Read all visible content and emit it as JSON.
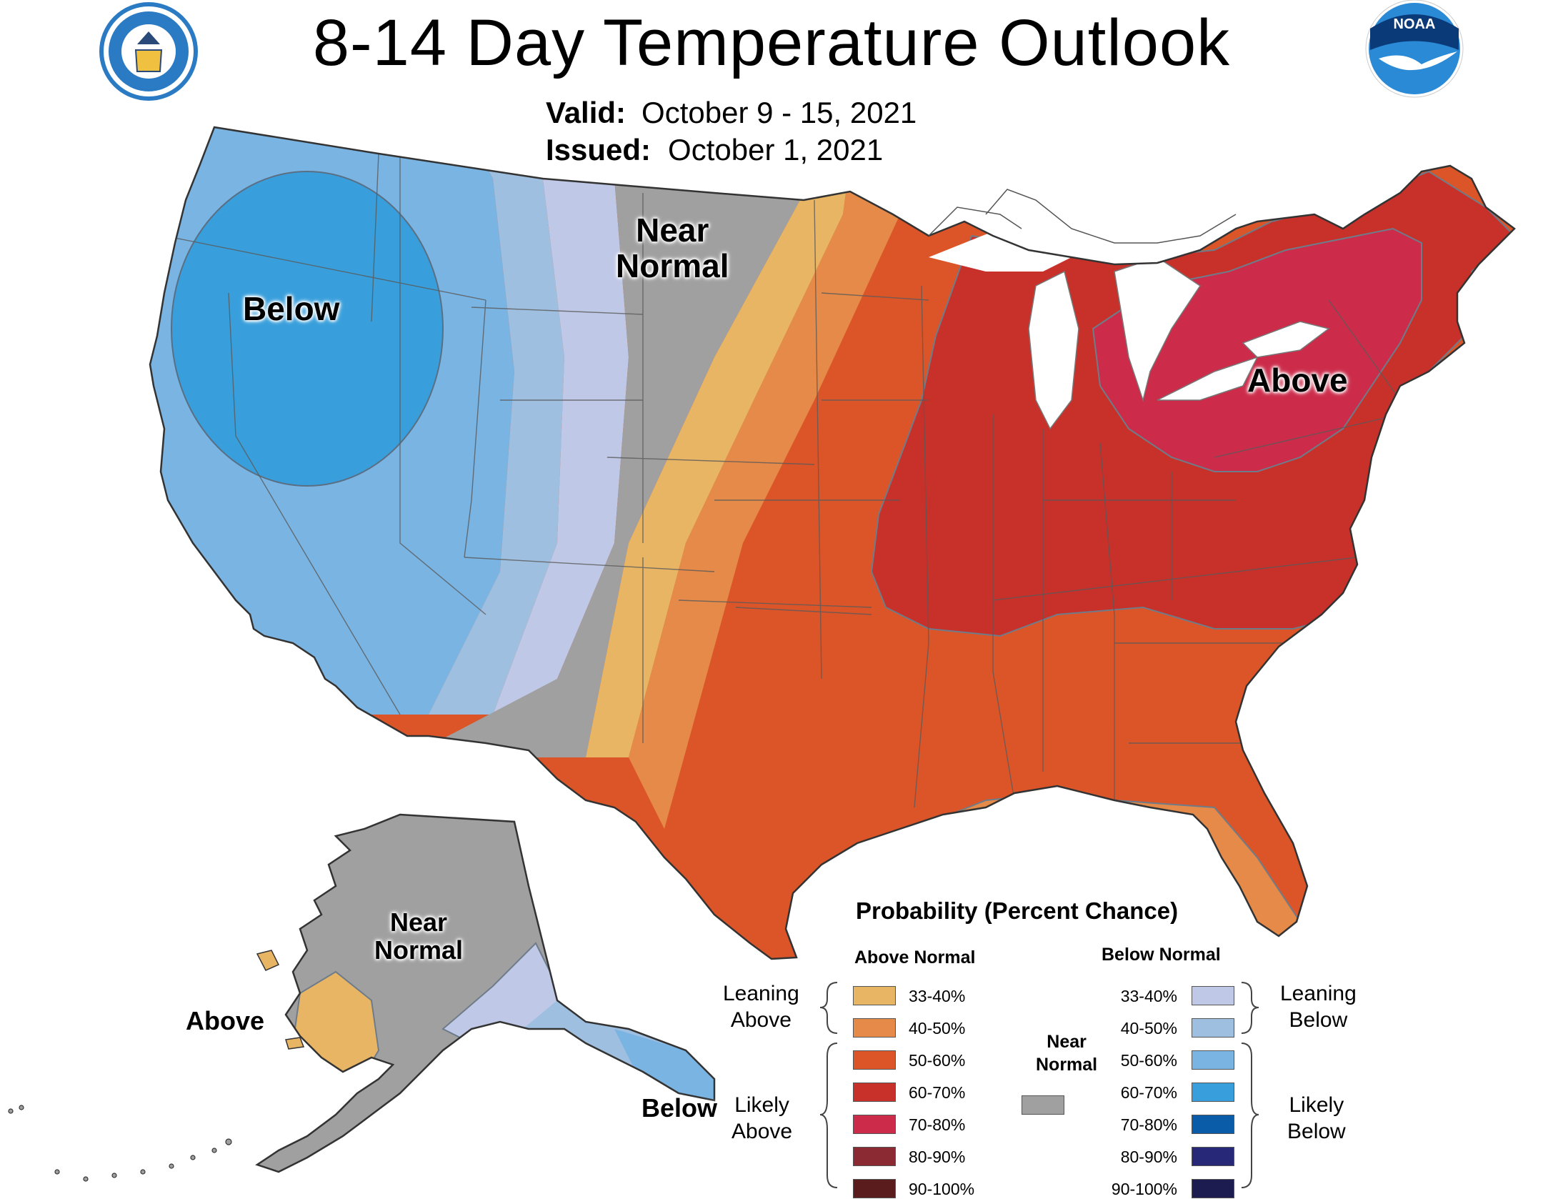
{
  "title": "8-14 Day Temperature Outlook",
  "valid_label": "Valid:",
  "valid_value": "October 9 - 15, 2021",
  "issued_label": "Issued:",
  "issued_value": "October 1, 2021",
  "logos": {
    "left": "department-of-commerce-seal",
    "right": "noaa-logo",
    "noaa_text": "NOAA"
  },
  "map_labels": {
    "below": "Below",
    "near_normal_l1": "Near",
    "near_normal_l2": "Normal",
    "above": "Above",
    "ak_near_l1": "Near",
    "ak_near_l2": "Normal",
    "ak_above": "Above",
    "ak_below": "Below"
  },
  "legend": {
    "title": "Probability (Percent Chance)",
    "above_head": "Above Normal",
    "below_head": "Below Normal",
    "near_l1": "Near",
    "near_l2": "Normal",
    "near_color": "#a0a0a0",
    "leaning_above_l1": "Leaning",
    "leaning_above_l2": "Above",
    "likely_above_l1": "Likely",
    "likely_above_l2": "Above",
    "leaning_below_l1": "Leaning",
    "leaning_below_l2": "Below",
    "likely_below_l1": "Likely",
    "likely_below_l2": "Below",
    "above": [
      {
        "label": "33-40%",
        "color": "#e8b565"
      },
      {
        "label": "40-50%",
        "color": "#e58a48"
      },
      {
        "label": "50-60%",
        "color": "#dc5528"
      },
      {
        "label": "60-70%",
        "color": "#c8302a"
      },
      {
        "label": "70-80%",
        "color": "#cc2c4a"
      },
      {
        "label": "80-90%",
        "color": "#8c2a34"
      },
      {
        "label": "90-100%",
        "color": "#5a1c1c"
      }
    ],
    "below": [
      {
        "label": "33-40%",
        "color": "#bfc8e6"
      },
      {
        "label": "40-50%",
        "color": "#9fbfe0"
      },
      {
        "label": "50-60%",
        "color": "#7ab4e2"
      },
      {
        "label": "60-70%",
        "color": "#389fdc"
      },
      {
        "label": "70-80%",
        "color": "#0a5ca8"
      },
      {
        "label": "80-90%",
        "color": "#282878"
      },
      {
        "label": "90-100%",
        "color": "#1c1c50"
      }
    ]
  }
}
